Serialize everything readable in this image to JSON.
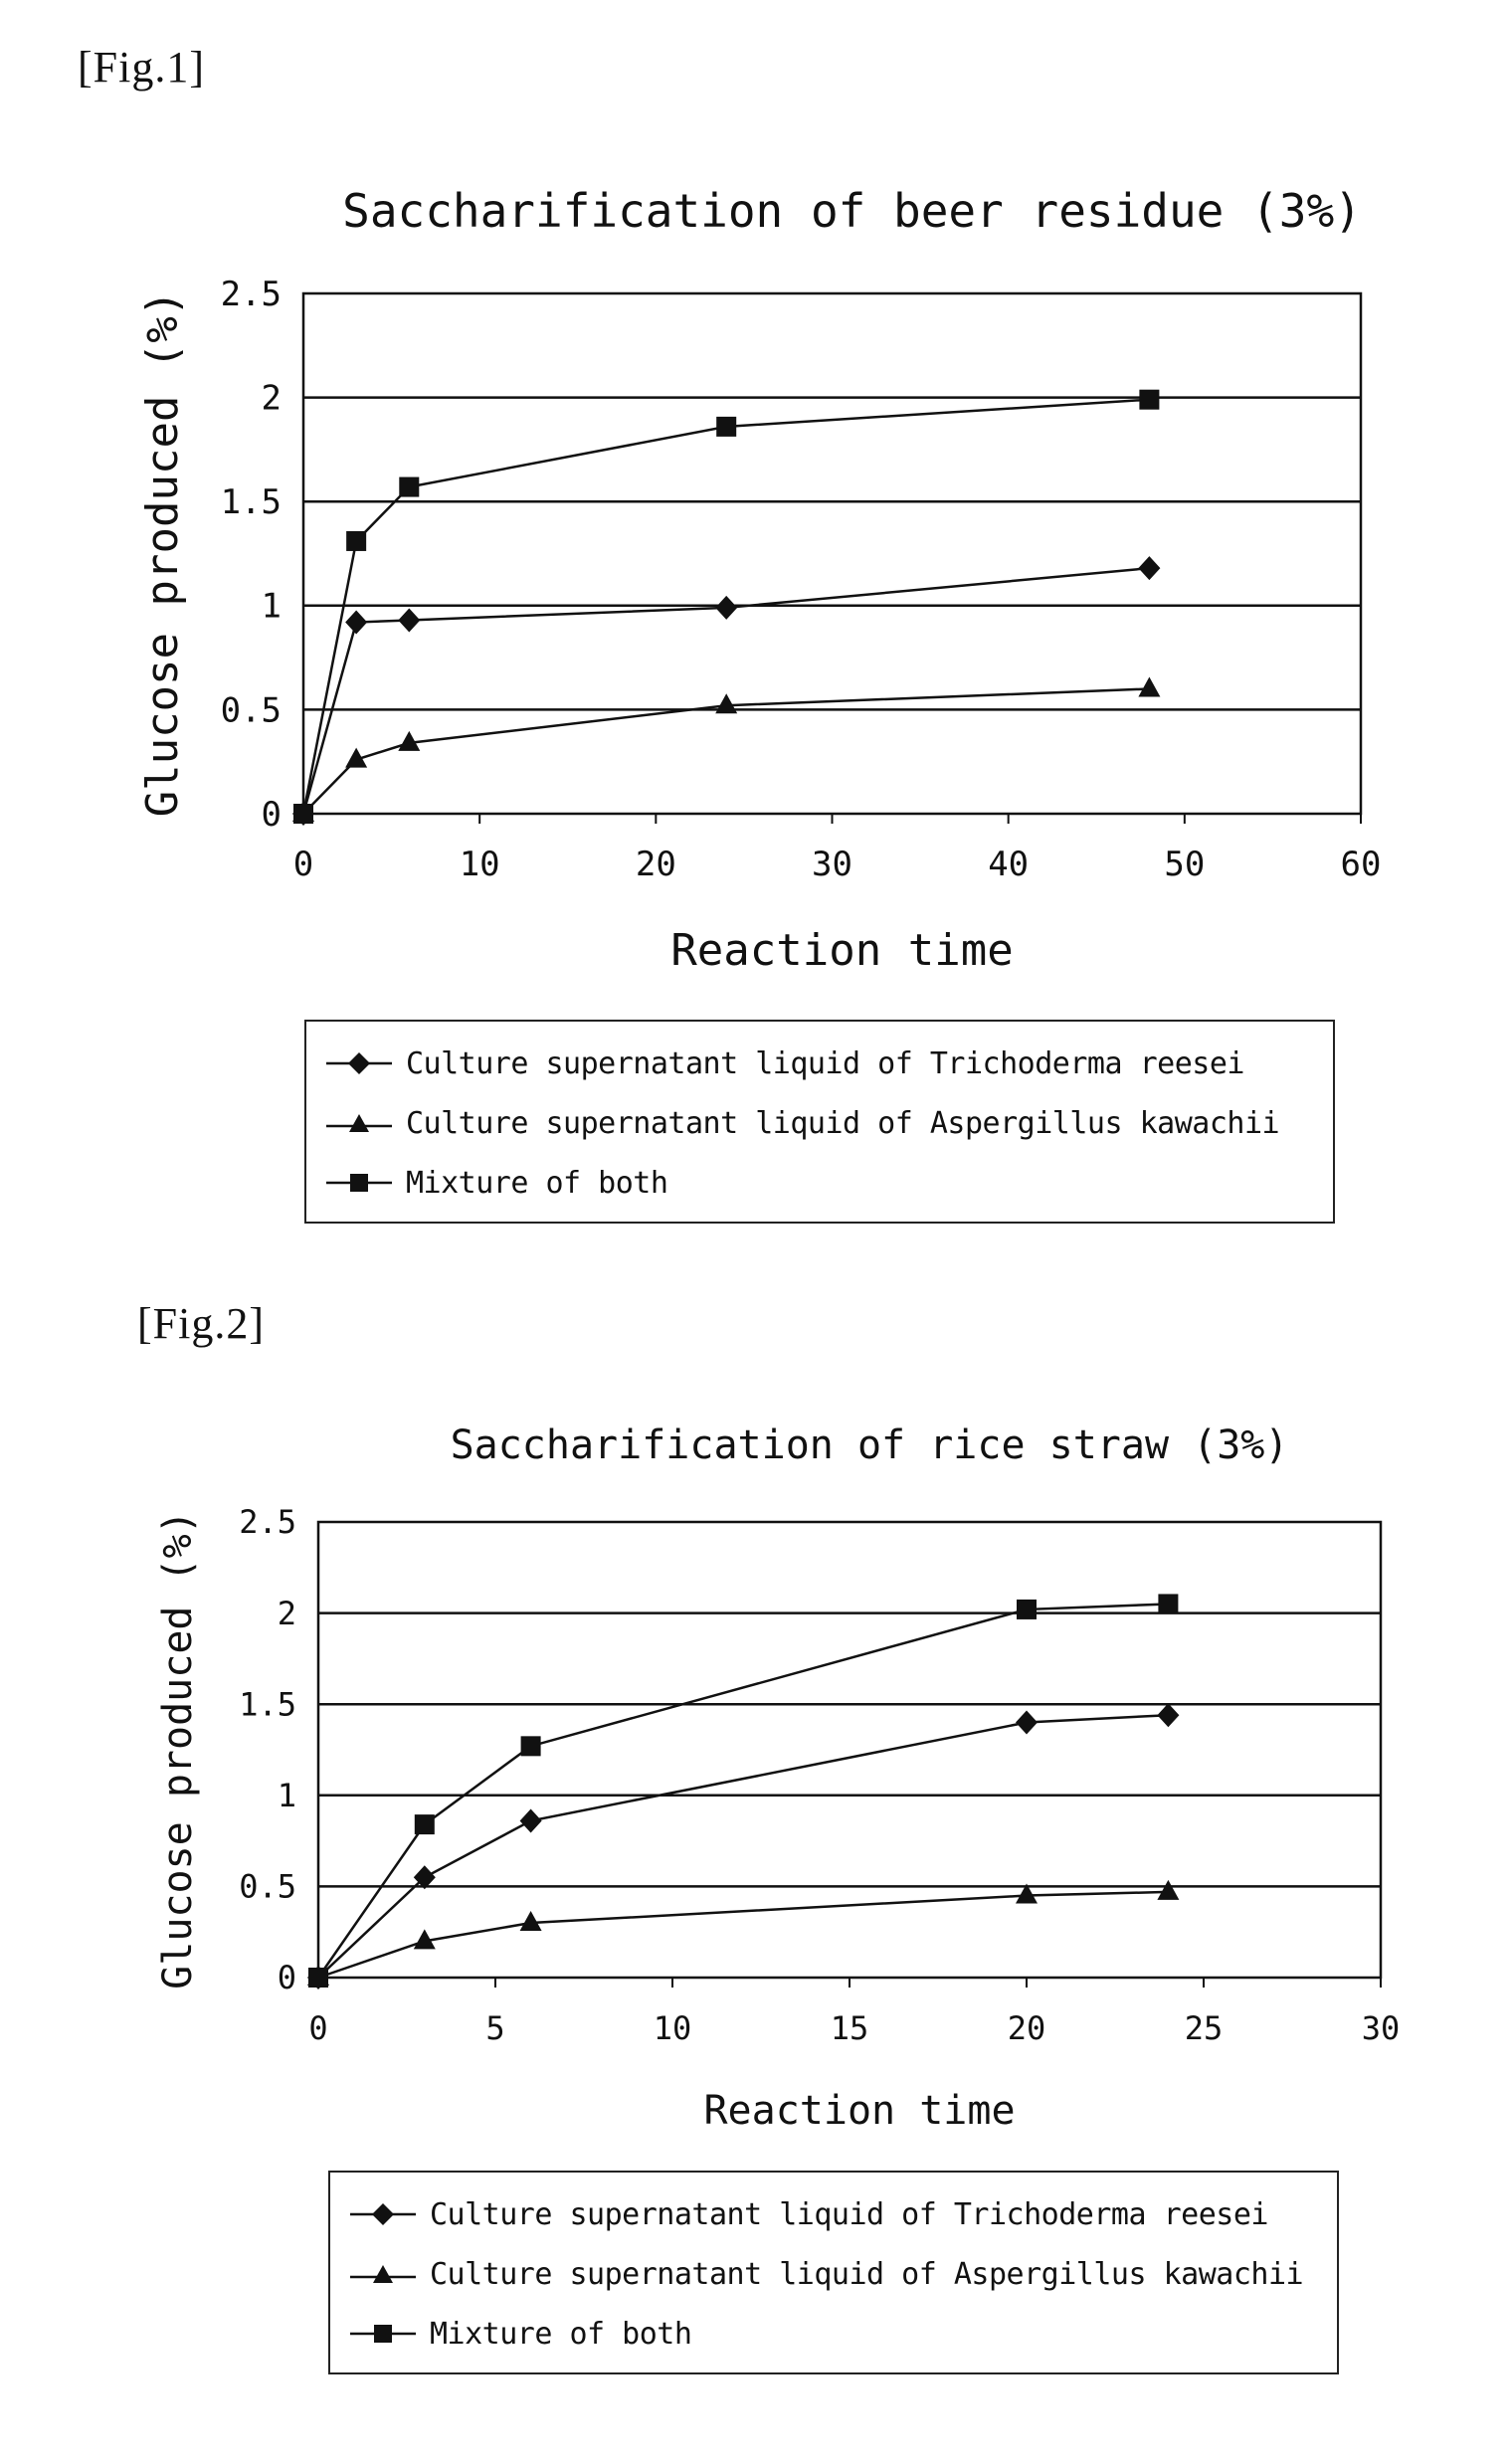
{
  "figures": [
    {
      "label": "[Fig.1]"
    },
    {
      "label": "[Fig.2]"
    }
  ],
  "colors": {
    "line": "#111111",
    "grid": "#111111",
    "background": "#ffffff"
  },
  "chart_data": [
    {
      "type": "line",
      "title": "Saccharification of beer residue (3%)",
      "xlabel": "Reaction time",
      "ylabel": "Glucose produced (%)",
      "xlim": [
        0,
        60
      ],
      "ylim": [
        0,
        2.5
      ],
      "xticks": [
        0,
        10,
        20,
        30,
        40,
        50,
        60
      ],
      "yticks": [
        0,
        0.5,
        1,
        1.5,
        2,
        2.5
      ],
      "ytick_labels": [
        "0",
        "0.5",
        "1",
        "1.5",
        "2",
        "2.5"
      ],
      "grid": "horizontal",
      "legend_position": "bottom",
      "series": [
        {
          "name": "Culture supernatant liquid of Trichoderma reesei",
          "marker": "diamond",
          "x": [
            0,
            3,
            6,
            24,
            48
          ],
          "y": [
            0,
            0.92,
            0.93,
            0.99,
            1.18
          ]
        },
        {
          "name": "Culture supernatant liquid of Aspergillus kawachii",
          "marker": "triangle",
          "x": [
            0,
            3,
            6,
            24,
            48
          ],
          "y": [
            0,
            0.26,
            0.34,
            0.52,
            0.6
          ]
        },
        {
          "name": "Mixture of both",
          "marker": "square",
          "x": [
            0,
            3,
            6,
            24,
            48
          ],
          "y": [
            0,
            1.31,
            1.57,
            1.86,
            1.99
          ]
        }
      ]
    },
    {
      "type": "line",
      "title": "Saccharification of rice straw (3%)",
      "xlabel": "Reaction time",
      "ylabel": "Glucose produced (%)",
      "xlim": [
        0,
        30
      ],
      "ylim": [
        0,
        2.5
      ],
      "xticks": [
        0,
        5,
        10,
        15,
        20,
        25,
        30
      ],
      "yticks": [
        0,
        0.5,
        1,
        1.5,
        2,
        2.5
      ],
      "ytick_labels": [
        "0",
        "0.5",
        "1",
        "1.5",
        "2",
        "2.5"
      ],
      "grid": "horizontal",
      "legend_position": "bottom",
      "series": [
        {
          "name": "Culture supernatant liquid of Trichoderma reesei",
          "marker": "diamond",
          "x": [
            0,
            3,
            6,
            20,
            24
          ],
          "y": [
            0,
            0.55,
            0.86,
            1.4,
            1.44
          ]
        },
        {
          "name": "Culture supernatant liquid of Aspergillus kawachii",
          "marker": "triangle",
          "x": [
            0,
            3,
            6,
            20,
            24
          ],
          "y": [
            0,
            0.2,
            0.3,
            0.45,
            0.47
          ]
        },
        {
          "name": "Mixture of both",
          "marker": "square",
          "x": [
            0,
            3,
            6,
            20,
            24
          ],
          "y": [
            0,
            0.84,
            1.27,
            2.02,
            2.05
          ]
        }
      ]
    }
  ]
}
